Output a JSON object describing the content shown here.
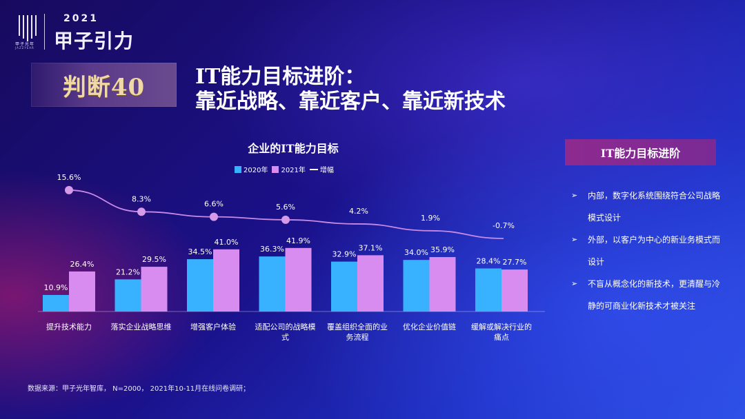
{
  "logo": {
    "cn": "甲子光年",
    "sub": "JAZZYEAR",
    "year": "2021",
    "brand": "甲子引力"
  },
  "badge": "判断40",
  "title_line1": "IT能力目标进阶：",
  "title_line2": "靠近战略、靠近客户、靠近新技术",
  "chart_data": {
    "type": "bar",
    "title": "企业的IT能力目标",
    "categories": [
      "提升技术能力",
      "落实企业战略思维",
      "增强客户体验",
      "适配公司的战略模式",
      "覆盖组织全面的业务流程",
      "优化企业价值链",
      "缓解或解决行业的痛点"
    ],
    "series": [
      {
        "name": "2020年",
        "values": [
          10.9,
          21.2,
          34.5,
          36.3,
          32.9,
          34.0,
          28.4
        ],
        "color": "#38b2ff"
      },
      {
        "name": "2021年",
        "values": [
          26.4,
          29.5,
          41.0,
          41.9,
          37.1,
          35.9,
          27.7
        ],
        "color": "#d98cf0"
      },
      {
        "name": "增幅",
        "values": [
          15.6,
          8.3,
          6.6,
          5.6,
          4.2,
          1.9,
          -0.7
        ],
        "type": "line",
        "color": "#c98ae6"
      }
    ],
    "value_labels": {
      "s2020": [
        "10.9%",
        "21.2%",
        "34.5%",
        "36.3%",
        "32.9%",
        "34.0%",
        "28.4%"
      ],
      "s2021": [
        "26.4%",
        "29.5%",
        "41.0%",
        "41.9%",
        "37.1%",
        "35.9%",
        "27.7%"
      ],
      "growth": [
        "15.6%",
        "8.3%",
        "6.6%",
        "5.6%",
        "4.2%",
        "1.9%",
        "-0.7%"
      ]
    },
    "category_lines": [
      [
        "提升技术能力"
      ],
      [
        "落实企业战略思维"
      ],
      [
        "增强客户体验"
      ],
      [
        "适配公司的战略模",
        "式"
      ],
      [
        "覆盖组织全面的业",
        "务流程"
      ],
      [
        "优化企业价值链"
      ],
      [
        "缓解或解决行业的",
        "痛点"
      ]
    ],
    "legend": [
      "2020年",
      "2021年",
      "增幅"
    ],
    "legend_position": "top"
  },
  "source": "数据来源：甲子光年智库， N=2000， 2021年10-11月在线问卷调研；",
  "panel": {
    "title": "IT能力目标进阶",
    "bullets": [
      "内部，数字化系统围绕符合公司战略模式设计",
      "外部，以客户为中心的新业务模式而设计",
      "不盲从概念化的新技术，更清醒与冷静的可商业化新技术才被关注"
    ],
    "arrow": "➢"
  }
}
